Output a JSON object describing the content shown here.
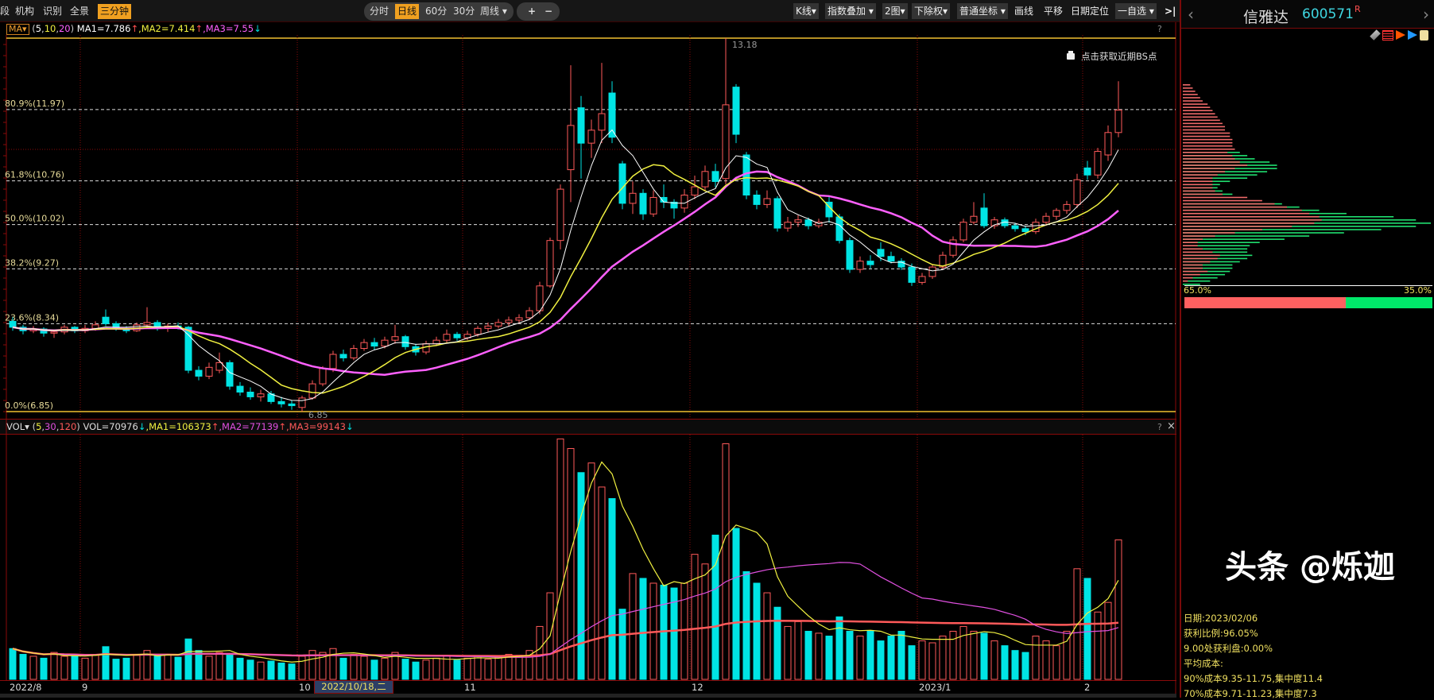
{
  "toolbar": {
    "left_buttons": [
      "段",
      "机构",
      "识别",
      "全景",
      "三分钟"
    ],
    "period_tabs": [
      "分时",
      "日线",
      "60分",
      "30分",
      "周线 ▾"
    ],
    "zoom_in": "+",
    "zoom_out": "−",
    "right_buttons": [
      "K线▾",
      "指数叠加 ▾",
      "2图▾",
      "下除权▾",
      "普通坐标 ▾",
      "画线",
      "平移",
      "日期定位",
      "一自选 ▾"
    ],
    "collapse_icon": "collapse-right-icon"
  },
  "stock": {
    "name": "信雅达",
    "code": "600571",
    "badge": "R",
    "prev": "‹",
    "next": "›"
  },
  "main_legend": {
    "indicator": "MA▾",
    "open": "(",
    "params": [
      "5",
      "10",
      "20"
    ],
    "close": ")",
    "items": [
      {
        "label": "MA1=7.786",
        "arrow": "↑",
        "color": "#ffffff",
        "arrow_color": "#ff5050"
      },
      {
        "label": "MA2=7.414",
        "arrow": "↑",
        "color": "#f0f040",
        "arrow_color": "#ff5050"
      },
      {
        "label": "MA3=7.55",
        "arrow": "↓",
        "color": "#ff60ff",
        "arrow_color": "#00e4e4"
      }
    ]
  },
  "vol_legend": {
    "indicator": "VOL▾",
    "open": "(",
    "params": [
      "5",
      "30",
      "120"
    ],
    "close": ")",
    "items": [
      {
        "label": "VOL=70976",
        "arrow": "↓",
        "color": "#dddddd",
        "arrow_color": "#00e4e4"
      },
      {
        "label": "MA1=106373",
        "arrow": "↑",
        "color": "#f0f040",
        "arrow_color": "#ff5050"
      },
      {
        "label": "MA2=77139",
        "arrow": "↑",
        "color": "#e050e0",
        "arrow_color": "#ff5050"
      },
      {
        "label": "MA3=99143",
        "arrow": "↓",
        "color": "#ff5a5a",
        "arrow_color": "#00e4e4"
      }
    ]
  },
  "pane_help": "?",
  "pane_close": "×",
  "bs_point": {
    "label": "点击获取近期BS点",
    "icon": "lock-icon"
  },
  "colors": {
    "up": "#ff5a5a",
    "down": "#00e4e4",
    "ma5": "#ffffff",
    "ma10": "#f0f040",
    "ma20": "#ff60ff",
    "vma5": "#f0f040",
    "vma30": "#e050e0",
    "vma120": "#ff5a5a",
    "fib": "#e8dc9a",
    "grid": "#8a0a0a"
  },
  "chart_data": {
    "type": "candlestick",
    "ma_periods": [
      5,
      10,
      20
    ],
    "vol_ma_periods": [
      5,
      30,
      120
    ],
    "ylim": [
      6.85,
      13.18
    ],
    "high_label": "13.18",
    "low_label": "6.85",
    "fib_levels": [
      {
        "label": "80.9%(11.97)",
        "price": 11.97
      },
      {
        "label": "61.8%(10.76)",
        "price": 10.76
      },
      {
        "label": "50.0%(10.02)",
        "price": 10.02
      },
      {
        "label": "38.2%(9.27)",
        "price": 9.27
      },
      {
        "label": "23.6%(8.34)",
        "price": 8.34
      },
      {
        "label": "0.0%(6.85)",
        "price": 6.85
      }
    ],
    "month_ticks": [
      {
        "label": "2022/8",
        "index": 0
      },
      {
        "label": "9",
        "index": 7
      },
      {
        "label": "10",
        "index": 28
      },
      {
        "label": "11",
        "index": 44
      },
      {
        "label": "12",
        "index": 66
      },
      {
        "label": "2023/1",
        "index": 88
      },
      {
        "label": "2",
        "index": 104
      }
    ],
    "cursor_date": "2022/10/18,二",
    "ohlc": [
      [
        8.38,
        8.45,
        8.22,
        8.28
      ],
      [
        8.28,
        8.32,
        8.16,
        8.22
      ],
      [
        8.22,
        8.3,
        8.18,
        8.25
      ],
      [
        8.25,
        8.28,
        8.12,
        8.18
      ],
      [
        8.18,
        8.24,
        8.1,
        8.2
      ],
      [
        8.2,
        8.32,
        8.16,
        8.28
      ],
      [
        8.28,
        8.3,
        8.18,
        8.22
      ],
      [
        8.22,
        8.32,
        8.18,
        8.26
      ],
      [
        8.26,
        8.38,
        8.22,
        8.32
      ],
      [
        8.45,
        8.58,
        8.3,
        8.34
      ],
      [
        8.34,
        8.38,
        8.22,
        8.26
      ],
      [
        8.26,
        8.3,
        8.18,
        8.22
      ],
      [
        8.22,
        8.36,
        8.2,
        8.32
      ],
      [
        8.32,
        8.62,
        8.26,
        8.36
      ],
      [
        8.36,
        8.4,
        8.22,
        8.26
      ],
      [
        8.26,
        8.34,
        8.2,
        8.3
      ],
      [
        8.3,
        8.36,
        8.24,
        8.28
      ],
      [
        8.28,
        8.3,
        7.5,
        7.55
      ],
      [
        7.55,
        7.62,
        7.38,
        7.45
      ],
      [
        7.45,
        7.68,
        7.4,
        7.6
      ],
      [
        7.55,
        7.85,
        7.5,
        7.68
      ],
      [
        7.68,
        7.72,
        7.22,
        7.28
      ],
      [
        7.28,
        7.35,
        7.12,
        7.18
      ],
      [
        7.18,
        7.26,
        7.05,
        7.1
      ],
      [
        7.1,
        7.22,
        7.02,
        7.15
      ],
      [
        7.15,
        7.2,
        6.98,
        7.02
      ],
      [
        7.02,
        7.1,
        6.92,
        6.98
      ],
      [
        6.98,
        7.04,
        6.88,
        6.95
      ],
      [
        6.92,
        7.12,
        6.85,
        7.08
      ],
      [
        7.08,
        7.38,
        7.05,
        7.32
      ],
      [
        7.32,
        7.62,
        7.28,
        7.58
      ],
      [
        7.58,
        7.88,
        7.52,
        7.82
      ],
      [
        7.82,
        7.9,
        7.7,
        7.76
      ],
      [
        7.76,
        7.98,
        7.72,
        7.92
      ],
      [
        7.92,
        8.08,
        7.88,
        8.02
      ],
      [
        8.02,
        8.1,
        7.9,
        7.96
      ],
      [
        7.96,
        8.12,
        7.92,
        8.06
      ],
      [
        8.06,
        8.32,
        8.0,
        8.12
      ],
      [
        8.12,
        8.15,
        7.9,
        7.95
      ],
      [
        7.95,
        8.0,
        7.8,
        7.86
      ],
      [
        7.86,
        8.05,
        7.82,
        8.0
      ],
      [
        8.0,
        8.12,
        7.96,
        8.06
      ],
      [
        8.06,
        8.24,
        8.02,
        8.16
      ],
      [
        8.16,
        8.2,
        8.05,
        8.1
      ],
      [
        8.1,
        8.22,
        8.06,
        8.16
      ],
      [
        8.16,
        8.3,
        8.12,
        8.26
      ],
      [
        8.26,
        8.36,
        8.2,
        8.3
      ],
      [
        8.3,
        8.42,
        8.26,
        8.36
      ],
      [
        8.36,
        8.46,
        8.3,
        8.4
      ],
      [
        8.4,
        8.5,
        8.34,
        8.44
      ],
      [
        8.44,
        8.62,
        8.4,
        8.56
      ],
      [
        8.56,
        9.05,
        8.5,
        8.98
      ],
      [
        8.98,
        9.8,
        8.95,
        9.75
      ],
      [
        9.75,
        10.7,
        9.6,
        10.62
      ],
      [
        10.95,
        12.72,
        10.4,
        11.7
      ],
      [
        12.0,
        12.2,
        10.8,
        11.4
      ],
      [
        11.4,
        11.8,
        11.15,
        11.62
      ],
      [
        11.62,
        12.76,
        11.4,
        11.9
      ],
      [
        12.25,
        12.45,
        11.4,
        11.5
      ],
      [
        11.05,
        11.1,
        10.28,
        10.38
      ],
      [
        10.38,
        10.75,
        10.2,
        10.55
      ],
      [
        10.55,
        10.62,
        10.1,
        10.2
      ],
      [
        10.2,
        10.6,
        10.15,
        10.48
      ],
      [
        10.48,
        10.7,
        10.3,
        10.4
      ],
      [
        10.4,
        10.45,
        10.12,
        10.3
      ],
      [
        10.3,
        10.62,
        10.22,
        10.52
      ],
      [
        10.52,
        10.85,
        10.45,
        10.66
      ],
      [
        10.66,
        11.02,
        10.6,
        10.92
      ],
      [
        10.92,
        11.05,
        10.65,
        10.75
      ],
      [
        10.8,
        13.18,
        10.7,
        12.05
      ],
      [
        12.35,
        12.4,
        11.4,
        11.55
      ],
      [
        11.2,
        11.25,
        10.45,
        10.52
      ],
      [
        10.52,
        10.6,
        10.28,
        10.36
      ],
      [
        10.36,
        10.6,
        10.3,
        10.46
      ],
      [
        10.46,
        10.5,
        9.9,
        9.96
      ],
      [
        9.96,
        10.15,
        9.9,
        10.06
      ],
      [
        10.06,
        10.18,
        9.98,
        10.1
      ],
      [
        10.1,
        10.14,
        9.94,
        10.0
      ],
      [
        10.0,
        10.12,
        9.96,
        10.06
      ],
      [
        10.4,
        10.5,
        10.05,
        10.15
      ],
      [
        10.15,
        10.2,
        9.7,
        9.75
      ],
      [
        9.75,
        9.8,
        9.2,
        9.26
      ],
      [
        9.26,
        9.48,
        9.2,
        9.4
      ],
      [
        9.4,
        9.5,
        9.28,
        9.34
      ],
      [
        9.6,
        9.72,
        9.4,
        9.48
      ],
      [
        9.48,
        9.56,
        9.36,
        9.4
      ],
      [
        9.4,
        9.45,
        9.25,
        9.3
      ],
      [
        9.3,
        9.36,
        8.98,
        9.04
      ],
      [
        9.04,
        9.2,
        9.0,
        9.14
      ],
      [
        9.14,
        9.34,
        9.1,
        9.3
      ],
      [
        9.3,
        9.56,
        9.26,
        9.5
      ],
      [
        9.5,
        9.82,
        9.46,
        9.76
      ],
      [
        9.76,
        10.12,
        9.72,
        10.06
      ],
      [
        10.06,
        10.4,
        10.02,
        10.16
      ],
      [
        10.3,
        10.55,
        9.96,
        10.0
      ],
      [
        10.0,
        10.15,
        9.95,
        10.1
      ],
      [
        10.1,
        10.14,
        9.96,
        10.0
      ],
      [
        10.0,
        10.05,
        9.9,
        9.95
      ],
      [
        9.95,
        10.0,
        9.84,
        9.9
      ],
      [
        9.9,
        10.12,
        9.86,
        10.06
      ],
      [
        10.06,
        10.22,
        10.0,
        10.16
      ],
      [
        10.16,
        10.3,
        10.1,
        10.26
      ],
      [
        10.26,
        10.42,
        10.2,
        10.36
      ],
      [
        10.36,
        10.88,
        10.3,
        10.78
      ],
      [
        10.98,
        11.1,
        10.78,
        10.86
      ],
      [
        10.86,
        11.32,
        10.8,
        11.26
      ],
      [
        11.2,
        11.7,
        11.1,
        11.58
      ],
      [
        11.58,
        12.45,
        11.5,
        11.96
      ]
    ],
    "volume": [
      32000,
      26000,
      24000,
      22000,
      28000,
      24000,
      25000,
      22000,
      26000,
      34000,
      21000,
      22000,
      25000,
      30000,
      24000,
      26000,
      23000,
      42000,
      30000,
      24000,
      28000,
      26000,
      22000,
      20000,
      18000,
      19000,
      17000,
      16000,
      24000,
      30000,
      28000,
      32000,
      22000,
      26000,
      24000,
      20000,
      22000,
      28000,
      21000,
      18000,
      20000,
      22000,
      24000,
      20000,
      22000,
      24000,
      21000,
      23000,
      26000,
      25000,
      30000,
      55000,
      90000,
      250000,
      240000,
      215000,
      225000,
      200000,
      188000,
      73000,
      110000,
      105000,
      100000,
      98000,
      95000,
      100000,
      130000,
      120000,
      150000,
      245000,
      157000,
      112000,
      100000,
      90000,
      75000,
      55000,
      60000,
      50000,
      48000,
      45000,
      65000,
      50000,
      45000,
      50000,
      40000,
      45000,
      50000,
      35000,
      40000,
      38000,
      45000,
      50000,
      55000,
      50000,
      48000,
      40000,
      35000,
      30000,
      28000,
      45000,
      40000,
      35000,
      50000,
      115000,
      105000,
      70000,
      80000,
      145000
    ],
    "vol_max": 252000
  },
  "chip_distribution": {
    "profit_pct": [
      3,
      4,
      5,
      6,
      7,
      8,
      10,
      11,
      12,
      13,
      14,
      15,
      16,
      17,
      17,
      19,
      19,
      20,
      20,
      20,
      21,
      18,
      20,
      21,
      23,
      26,
      21,
      17,
      14,
      12,
      12,
      12,
      12,
      13,
      16,
      26,
      32,
      37,
      42,
      48,
      51,
      55,
      56,
      53,
      44,
      32,
      21,
      13,
      8,
      6,
      6,
      8,
      12,
      15,
      14,
      11,
      8,
      8,
      10,
      7,
      4,
      2,
      0
    ],
    "total_pct": [
      3,
      4,
      5,
      6,
      7,
      8,
      10,
      11,
      12,
      13,
      14,
      15,
      16,
      17,
      17,
      19,
      19,
      20,
      20,
      20,
      21,
      23,
      26,
      29,
      35,
      38,
      38,
      34,
      30,
      26,
      19,
      15,
      14,
      16,
      20,
      26,
      32,
      40,
      47,
      55,
      66,
      85,
      94,
      100,
      94,
      80,
      65,
      51,
      41,
      31,
      27,
      26,
      26,
      28,
      26,
      23,
      20,
      20,
      19,
      17,
      14,
      11,
      7
    ],
    "profit_label": "65.0%",
    "loss_label": "35.0%",
    "profit_ratio": 0.65,
    "tool_icons": [
      "eraser-icon",
      "chip-bars-icon",
      "red-flag-icon",
      "blue-flag-icon",
      "book-icon"
    ]
  },
  "chip_info": {
    "date": "日期:2023/02/06",
    "profit_ratio": "获利比例:96.05%",
    "price_profit": "9.00处获利盘:0.00%",
    "avg_cost": "平均成本:",
    "cost90": "90%成本9.35-11.75,集中度11.4",
    "cost70": "70%成本9.71-11.23,集中度7.3"
  },
  "watermark": "头条 @烁迦"
}
